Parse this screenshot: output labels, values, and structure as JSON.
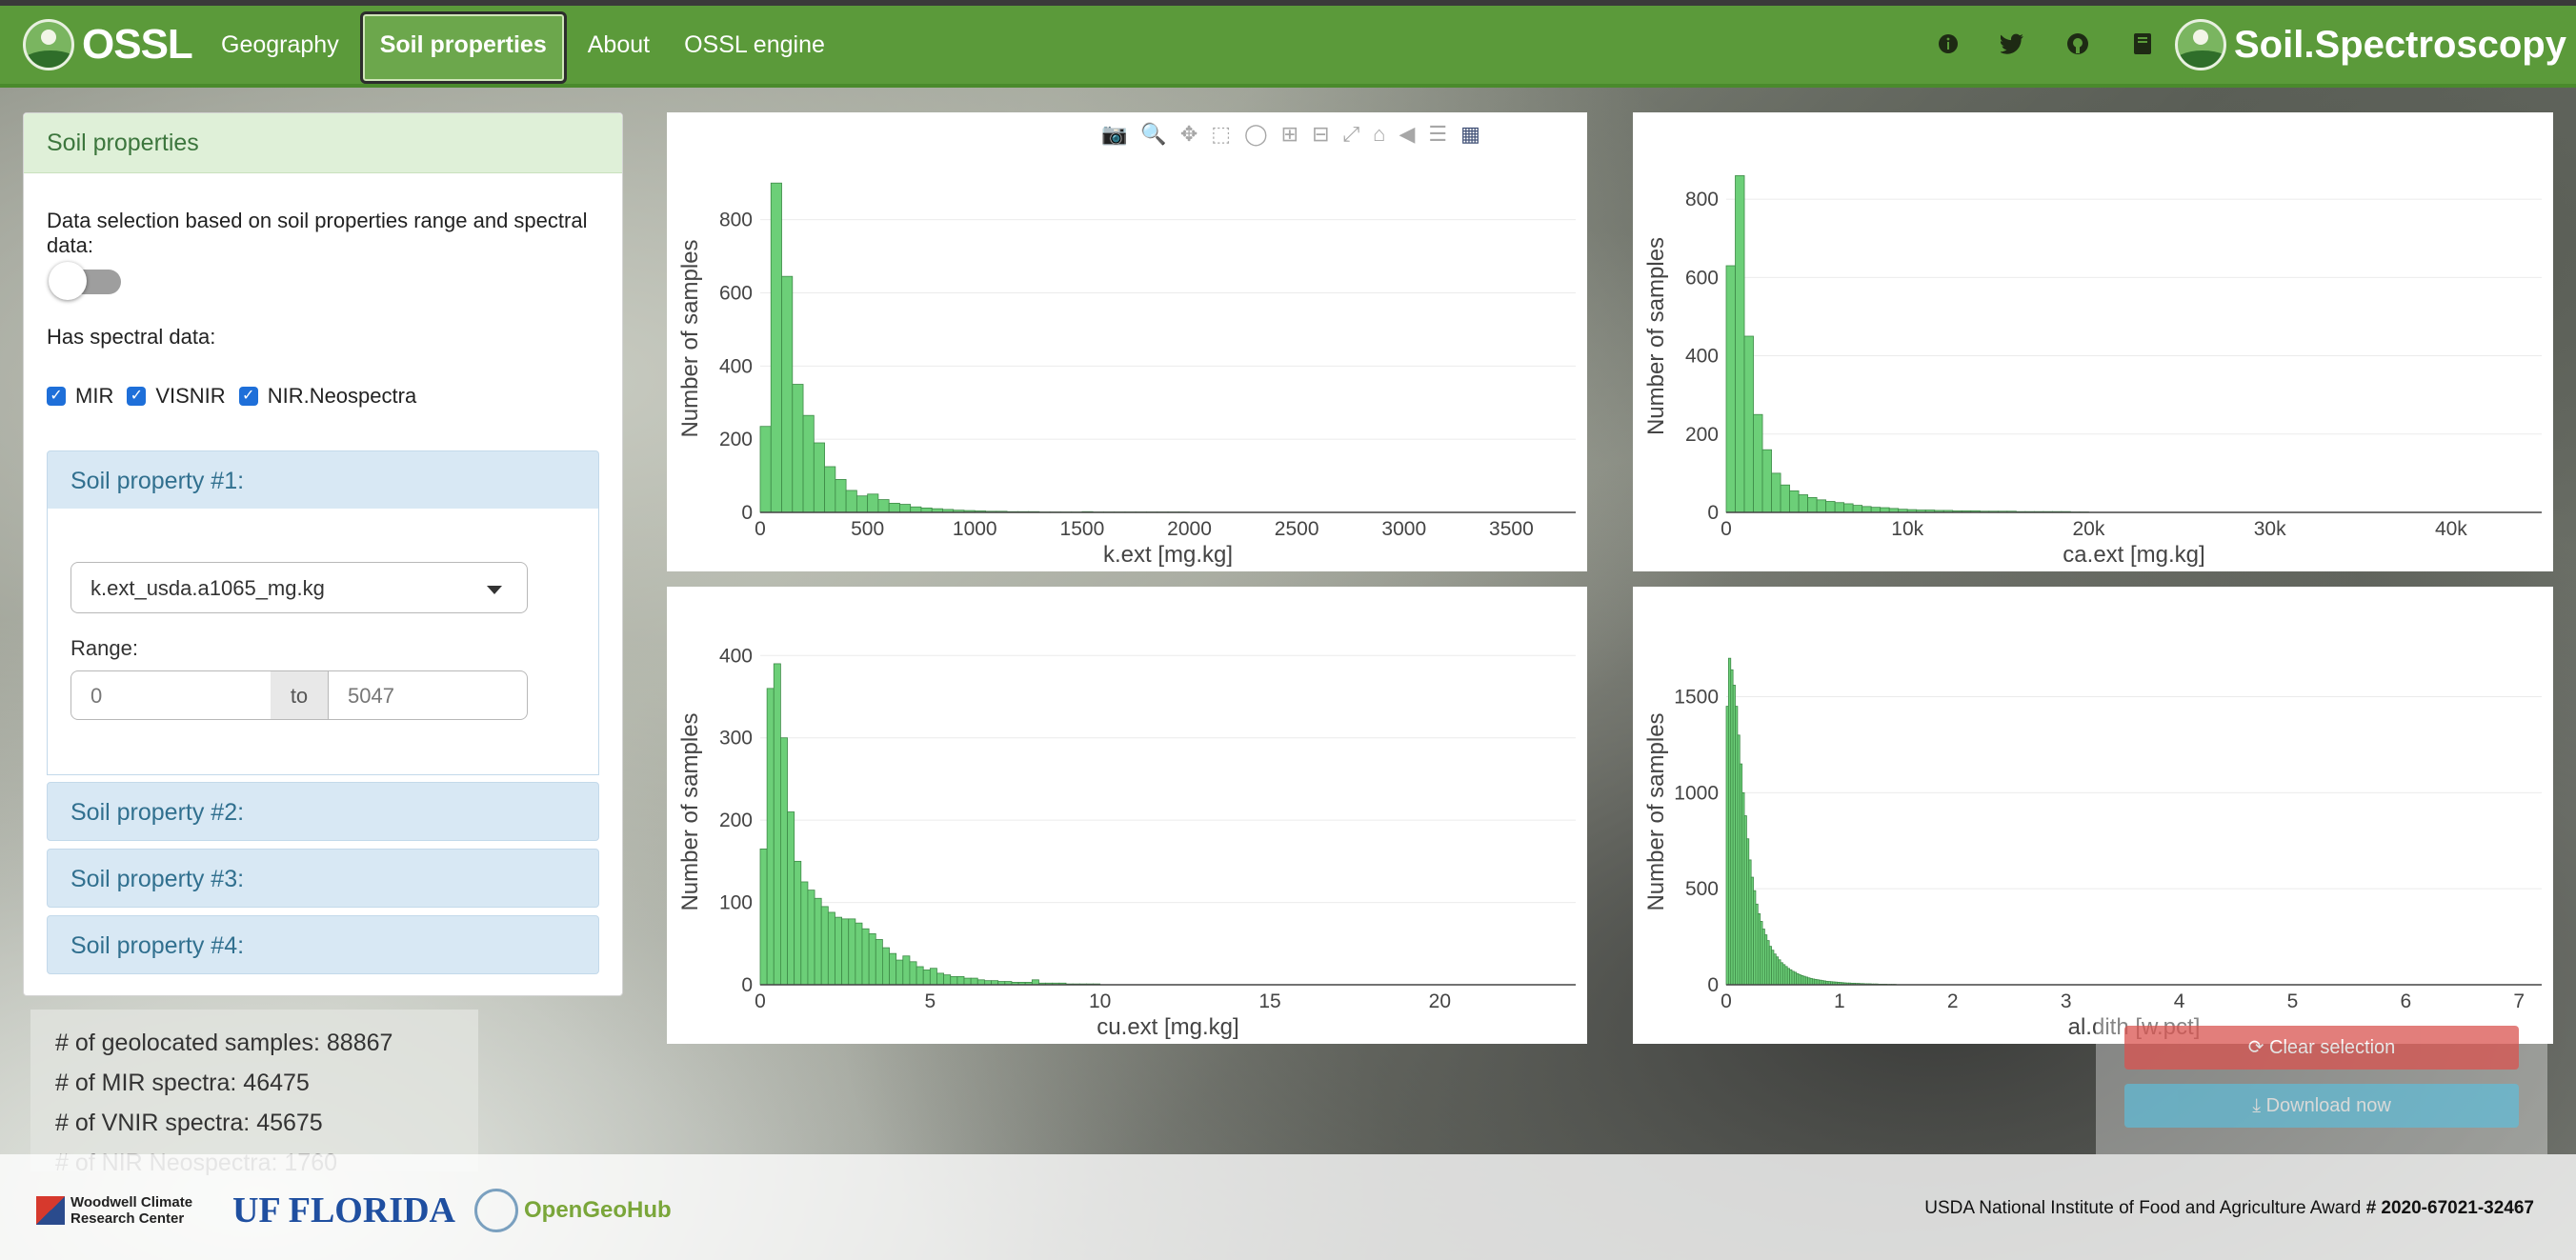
{
  "navbar": {
    "brand": "OSSL",
    "links": [
      "Geography",
      "Soil properties",
      "About",
      "OSSL engine"
    ],
    "active_link": "Soil properties",
    "icons": [
      "info-icon",
      "twitter-icon",
      "github-icon",
      "book-icon"
    ],
    "right_brand": "Soil.Spectroscopy",
    "color": "#5b9a3a"
  },
  "sidepanel": {
    "title": "Soil properties",
    "selection_label": "Data selection based on soil properties range and spectral data:",
    "toggle_on": false,
    "spectral_label": "Has spectral data:",
    "checkboxes": [
      {
        "label": "MIR",
        "checked": true
      },
      {
        "label": "VISNIR",
        "checked": true
      },
      {
        "label": "NIR.Neospectra",
        "checked": true
      }
    ],
    "properties": [
      {
        "title": "Soil property #1:",
        "select": "k.ext_usda.a1065_mg.kg",
        "range_label": "Range:",
        "range_min": "0",
        "range_to": "to",
        "range_max": "5047"
      },
      {
        "title": "Soil property #2:"
      },
      {
        "title": "Soil property #3:"
      },
      {
        "title": "Soil property #4:"
      }
    ]
  },
  "stats": {
    "geolocated": "# of geolocated samples: 88867",
    "mir": "# of MIR spectra: 46475",
    "vnir": "# of VNIR spectra: 45675",
    "nir": "# of NIR Neospectra: 1760"
  },
  "buttons": {
    "clear": "⟳ Clear selection",
    "download": "⤓ Download now"
  },
  "modebar_icons": [
    "camera-icon",
    "zoom-icon",
    "pan-icon",
    "box-select-icon",
    "lasso-icon",
    "zoom-in-icon",
    "zoom-out-icon",
    "autoscale-icon",
    "home-icon",
    "hover-closest-icon",
    "hover-compare-icon",
    "plotly-logo-icon"
  ],
  "footer": {
    "org1": "Woodwell Climate Research Center",
    "org2": "UF FLORIDA",
    "org3": "OpenGeoHub",
    "award_prefix": "USDA National Institute of Food and Agriculture Award",
    "award_number": "# 2020-67021-32467"
  },
  "chart_data": [
    {
      "type": "bar",
      "xlabel": "k.ext [mg.kg]",
      "ylabel": "Number of samples",
      "bar_color": "#6ccf78",
      "xlim": [
        0,
        3800
      ],
      "ylim": [
        0,
        950
      ],
      "xticks": [
        0,
        500,
        1000,
        1500,
        2000,
        2500,
        3000,
        3500
      ],
      "xtick_labels": [
        "0",
        "500",
        "1000",
        "1500",
        "2000",
        "2500",
        "3000",
        "3500"
      ],
      "yticks": [
        0,
        200,
        400,
        600,
        800
      ],
      "ytick_labels": [
        "0",
        "200",
        "400",
        "600",
        "800"
      ],
      "bin_width": 50,
      "x": [
        25,
        75,
        125,
        175,
        225,
        275,
        325,
        375,
        425,
        475,
        525,
        575,
        625,
        675,
        725,
        775,
        825,
        875,
        925,
        975,
        1025,
        1075,
        1125,
        1175,
        1225,
        1275,
        1325,
        1375,
        1425,
        1475,
        1525,
        1575,
        1625,
        1675,
        1725,
        1775,
        1825,
        1875,
        1925,
        1975
      ],
      "values": [
        235,
        900,
        645,
        350,
        265,
        190,
        125,
        90,
        60,
        45,
        50,
        35,
        25,
        22,
        15,
        12,
        10,
        8,
        6,
        5,
        4,
        3,
        3,
        2,
        2,
        2,
        1,
        1,
        1,
        1,
        2,
        1,
        1,
        1,
        1,
        1,
        1,
        1,
        1,
        1
      ]
    },
    {
      "type": "bar",
      "xlabel": "ca.ext [mg.kg]",
      "ylabel": "Number of samples",
      "bar_color": "#6ccf78",
      "xlim": [
        0,
        45000
      ],
      "ylim": [
        0,
        900
      ],
      "xticks": [
        0,
        10000,
        20000,
        30000,
        40000
      ],
      "xtick_labels": [
        "0",
        "10k",
        "20k",
        "30k",
        "40k"
      ],
      "yticks": [
        0,
        200,
        400,
        600,
        800
      ],
      "ytick_labels": [
        "0",
        "200",
        "400",
        "600",
        "800"
      ],
      "bin_width": 500,
      "x": [
        250,
        750,
        1250,
        1750,
        2250,
        2750,
        3250,
        3750,
        4250,
        4750,
        5250,
        5750,
        6250,
        6750,
        7250,
        7750,
        8250,
        8750,
        9250,
        9750,
        10250,
        10750,
        11250,
        11750,
        12250,
        12750,
        13250,
        13750,
        14250,
        14750,
        15250,
        15750,
        16250,
        16750,
        17250,
        17750,
        18250,
        18750,
        19250,
        19750
      ],
      "values": [
        630,
        860,
        450,
        250,
        160,
        100,
        70,
        55,
        45,
        38,
        32,
        28,
        25,
        22,
        18,
        15,
        13,
        12,
        10,
        8,
        7,
        6,
        6,
        5,
        5,
        4,
        4,
        4,
        3,
        3,
        3,
        3,
        2,
        2,
        2,
        2,
        2,
        2,
        1,
        1
      ]
    },
    {
      "type": "bar",
      "xlabel": "cu.ext [mg.kg]",
      "ylabel": "Number of samples",
      "bar_color": "#6ccf78",
      "xlim": [
        0,
        24
      ],
      "ylim": [
        0,
        420
      ],
      "xticks": [
        0,
        5,
        10,
        15,
        20
      ],
      "xtick_labels": [
        "0",
        "5",
        "10",
        "15",
        "20"
      ],
      "yticks": [
        0,
        100,
        200,
        300,
        400
      ],
      "ytick_labels": [
        "0",
        "100",
        "200",
        "300",
        "400"
      ],
      "bin_width": 0.2,
      "x": [
        0.1,
        0.3,
        0.5,
        0.7,
        0.9,
        1.1,
        1.3,
        1.5,
        1.7,
        1.9,
        2.1,
        2.3,
        2.5,
        2.7,
        2.9,
        3.1,
        3.3,
        3.5,
        3.7,
        3.9,
        4.1,
        4.3,
        4.5,
        4.7,
        4.9,
        5.1,
        5.3,
        5.5,
        5.7,
        5.9,
        6.1,
        6.3,
        6.5,
        6.7,
        6.9,
        7.1,
        7.3,
        7.5,
        7.7,
        7.9,
        8.1,
        8.3,
        8.5,
        8.7,
        8.9,
        9.1,
        9.3,
        9.5,
        9.7,
        9.9
      ],
      "values": [
        165,
        360,
        390,
        300,
        210,
        150,
        125,
        115,
        105,
        95,
        88,
        82,
        80,
        80,
        75,
        68,
        62,
        55,
        45,
        38,
        30,
        35,
        28,
        22,
        18,
        20,
        14,
        12,
        10,
        10,
        8,
        8,
        6,
        5,
        5,
        4,
        4,
        3,
        3,
        3,
        6,
        2,
        2,
        2,
        2,
        1,
        1,
        1,
        1,
        1
      ]
    },
    {
      "type": "bar",
      "xlabel": "al.dith [w.pct]",
      "ylabel": "Number of samples",
      "bar_color": "#6ccf78",
      "xlim": [
        0,
        7.2
      ],
      "ylim": [
        0,
        1800
      ],
      "xticks": [
        0,
        1,
        2,
        3,
        4,
        5,
        6,
        7
      ],
      "xtick_labels": [
        "0",
        "1",
        "2",
        "3",
        "4",
        "5",
        "6",
        "7"
      ],
      "yticks": [
        0,
        500,
        1000,
        1500
      ],
      "ytick_labels": [
        "0",
        "500",
        "1000",
        "1500"
      ],
      "bin_width": 0.02,
      "x": [
        0.01,
        0.03,
        0.05,
        0.07,
        0.09,
        0.11,
        0.13,
        0.15,
        0.17,
        0.19,
        0.21,
        0.23,
        0.25,
        0.27,
        0.29,
        0.31,
        0.33,
        0.35,
        0.37,
        0.39,
        0.41,
        0.43,
        0.45,
        0.47,
        0.49,
        0.51,
        0.53,
        0.55,
        0.57,
        0.59,
        0.61,
        0.63,
        0.65,
        0.67,
        0.69,
        0.71,
        0.73,
        0.75,
        0.77,
        0.79,
        0.81,
        0.83,
        0.85,
        0.87,
        0.89,
        0.91,
        0.93,
        0.95,
        0.97,
        0.99,
        1.01,
        1.03,
        1.05,
        1.07,
        1.09,
        1.11,
        1.13,
        1.15,
        1.17,
        1.19,
        1.21,
        1.23,
        1.25,
        1.27,
        1.29,
        1.31,
        1.33,
        1.35,
        1.37,
        1.39,
        1.41,
        1.43,
        1.45,
        1.47,
        1.49
      ],
      "values": [
        1450,
        1700,
        1640,
        1560,
        1450,
        1300,
        1150,
        1000,
        880,
        760,
        650,
        560,
        490,
        420,
        370,
        330,
        290,
        260,
        230,
        200,
        180,
        160,
        145,
        130,
        115,
        105,
        95,
        85,
        78,
        70,
        65,
        58,
        52,
        48,
        44,
        40,
        36,
        33,
        30,
        28,
        26,
        24,
        22,
        20,
        18,
        17,
        16,
        15,
        14,
        13,
        12,
        11,
        10,
        9,
        9,
        8,
        8,
        7,
        7,
        6,
        6,
        5,
        5,
        5,
        4,
        4,
        4,
        3,
        3,
        3,
        3,
        2,
        2,
        2,
        2
      ]
    }
  ]
}
